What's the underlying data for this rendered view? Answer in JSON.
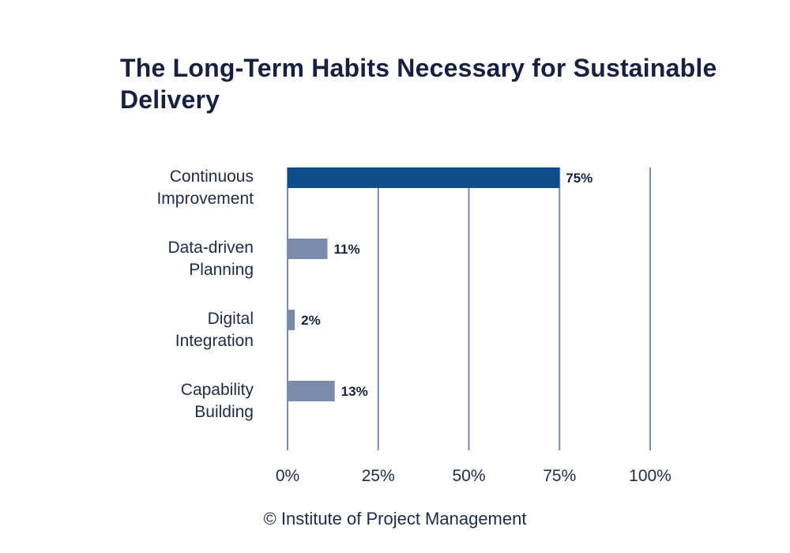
{
  "title": "The Long-Term Habits Necessary for Sustainable Delivery",
  "credit": "© Institute of Project Management",
  "chart_data": {
    "type": "bar",
    "orientation": "horizontal",
    "title": "The Long-Term Habits Necessary for Sustainable Delivery",
    "categories": [
      [
        "Continuous",
        "Improvement"
      ],
      [
        "Data-driven",
        "Planning"
      ],
      [
        "Digital",
        "Integration"
      ],
      [
        "Capability",
        "Building"
      ]
    ],
    "values": [
      75,
      11,
      2,
      13
    ],
    "value_labels": [
      "75%",
      "11%",
      "2%",
      "13%"
    ],
    "xlim": [
      0,
      100
    ],
    "xticks": [
      0,
      25,
      50,
      75,
      100
    ],
    "xtick_labels": [
      "0%",
      "25%",
      "50%",
      "75%",
      "100%"
    ],
    "xlabel": "",
    "ylabel": "",
    "grid": "vertical",
    "legend": "none",
    "colors": {
      "highlight_bar": "#0f4c8c",
      "bar": "#7a8bab",
      "gridline": "#7a8bab"
    }
  }
}
